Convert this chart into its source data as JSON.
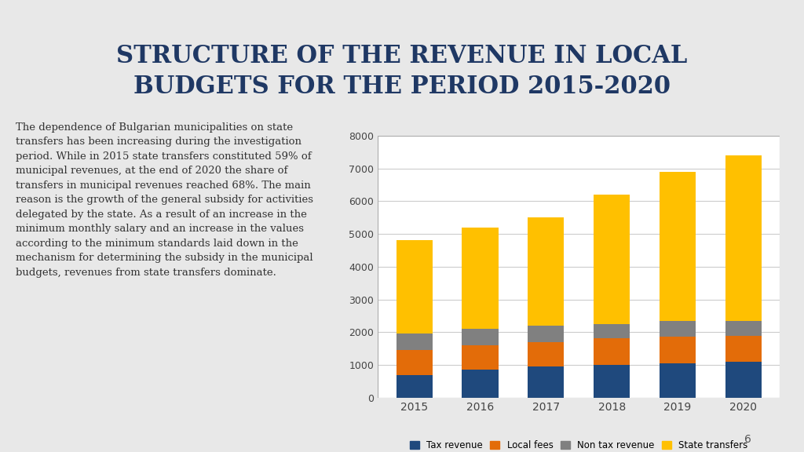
{
  "title_line1": "STRUCTURE OF THE REVENUE IN LOCAL",
  "title_line2": "BUDGETS FOR THE PERIOD 2015-2020",
  "title_color": "#1F3864",
  "background_color": "#E8E8E8",
  "chart_bg": "#FFFFFF",
  "years": [
    "2015",
    "2016",
    "2017",
    "2018",
    "2019",
    "2020"
  ],
  "tax_revenue": [
    700,
    860,
    950,
    1010,
    1060,
    1100
  ],
  "local_fees": [
    750,
    750,
    740,
    800,
    800,
    800
  ],
  "non_tax_revenue": [
    500,
    490,
    500,
    440,
    490,
    440
  ],
  "state_transfers": [
    2850,
    3100,
    3310,
    3950,
    4550,
    5060
  ],
  "colors": {
    "tax_revenue": "#1F497D",
    "local_fees": "#E36C09",
    "non_tax_revenue": "#808080",
    "state_transfers": "#FFC000"
  },
  "legend_labels": [
    "Tax revenue",
    "Local fees",
    "Non tax revenue",
    "State transfers"
  ],
  "ylim": [
    0,
    8000
  ],
  "yticks": [
    0,
    1000,
    2000,
    3000,
    4000,
    5000,
    6000,
    7000,
    8000
  ],
  "body_text": "The dependence of Bulgarian municipalities on state\ntransfers has been increasing during the investigation\nperiod. While in 2015 state transfers constituted 59% of\nmunicipal revenues, at the end of 2020 the share of\ntransfers in municipal revenues reached 68%. The main\nreason is the growth of the general subsidy for activities\ndelegated by the state. As a result of an increase in the\nminimum monthly salary and an increase in the values\naccording to the minimum standards laid down in the\nmechanism for determining the subsidy in the municipal\nbudgets, revenues from state transfers dominate.",
  "page_number": "6"
}
